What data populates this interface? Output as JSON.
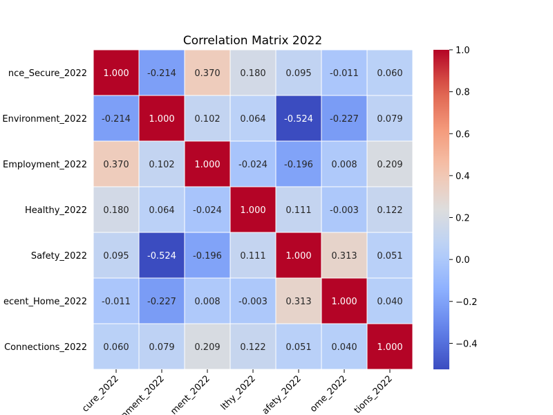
{
  "chart_data": {
    "type": "heatmap",
    "title": "Correlation Matrix 2022",
    "xlabel": "",
    "ylabel": "",
    "row_labels": [
      "nce_Secure_2022",
      "Environment_2022",
      "Employment_2022",
      "Healthy_2022",
      "Safety_2022",
      "ecent_Home_2022",
      "Connections_2022"
    ],
    "col_labels": [
      "cure_2022",
      "nment_2022",
      "ment_2022",
      "lthy_2022",
      "afety_2022",
      "ome_2022",
      "tions_2022"
    ],
    "values": [
      [
        1.0,
        -0.214,
        0.37,
        0.18,
        0.095,
        -0.011,
        0.06
      ],
      [
        -0.214,
        1.0,
        0.102,
        0.064,
        -0.524,
        -0.227,
        0.079
      ],
      [
        0.37,
        0.102,
        1.0,
        -0.024,
        -0.196,
        0.008,
        0.209
      ],
      [
        0.18,
        0.064,
        -0.024,
        1.0,
        0.111,
        -0.003,
        0.122
      ],
      [
        0.095,
        -0.524,
        -0.196,
        0.111,
        1.0,
        0.313,
        0.051
      ],
      [
        -0.011,
        -0.227,
        0.008,
        -0.003,
        0.313,
        1.0,
        0.04
      ],
      [
        0.06,
        0.079,
        0.209,
        0.122,
        0.051,
        0.04,
        1.0
      ]
    ],
    "value_format": "3 decimals",
    "colormap": "coolwarm",
    "color_range": [
      -0.524,
      1.0
    ],
    "colorbar_ticks": [
      "−0.4",
      "−0.2",
      "0.0",
      "0.2",
      "0.4",
      "0.6",
      "0.8",
      "1.0"
    ],
    "colorbar_tick_values": [
      -0.4,
      -0.2,
      0.0,
      0.2,
      0.4,
      0.6,
      0.8,
      1.0
    ],
    "legend": "colorbar-right",
    "grid": false
  }
}
